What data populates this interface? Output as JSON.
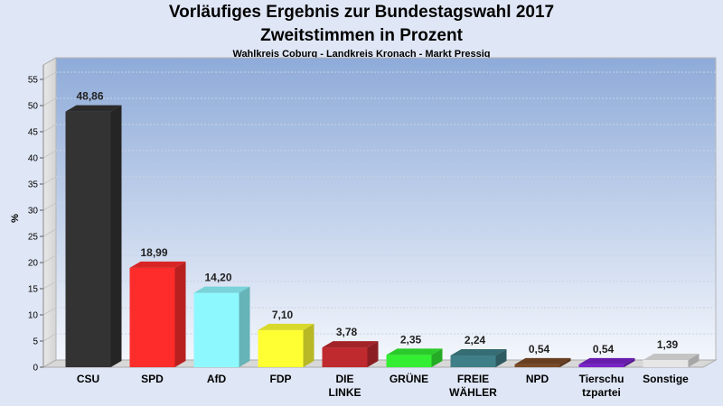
{
  "header": {
    "title_line1": "Vorläufiges Ergebnis zur Bundestagswahl 2017",
    "title_line2": "Zweitstimmen in Prozent",
    "subtitle": "Wahlkreis Coburg - Landkreis Kronach - Markt Pressig"
  },
  "chart_data": {
    "type": "bar",
    "title": "Vorläufiges Ergebnis zur Bundestagswahl 2017 Zweitstimmen in Prozent",
    "subtitle": "Wahlkreis Coburg - Landkreis Kronach - Markt Pressig",
    "ylabel": "%",
    "xlabel": "",
    "ylim": [
      0,
      55
    ],
    "yticks": [
      0,
      5,
      10,
      15,
      20,
      25,
      30,
      35,
      40,
      45,
      50,
      55
    ],
    "grid": true,
    "categories": [
      [
        "CSU"
      ],
      [
        "SPD"
      ],
      [
        "AfD"
      ],
      [
        "FDP"
      ],
      [
        "DIE",
        "LINKE"
      ],
      [
        "GRÜNE"
      ],
      [
        "FREIE",
        "WÄHLER"
      ],
      [
        "NPD"
      ],
      [
        "Tierschu",
        "tzpartei"
      ],
      [
        "Sonstige"
      ]
    ],
    "values": [
      48.86,
      18.99,
      14.2,
      7.1,
      3.78,
      2.35,
      2.24,
      0.54,
      0.54,
      1.39
    ],
    "value_labels": [
      "48,86",
      "18,99",
      "14,20",
      "7,10",
      "3,78",
      "2,35",
      "2,24",
      "0,54",
      "0,54",
      "1,39"
    ],
    "colors": [
      "#333333",
      "#ff2c2c",
      "#8ef8ff",
      "#ffff33",
      "#bf2a2f",
      "#33ee33",
      "#3f7f87",
      "#7a4a26",
      "#7a22cc",
      "#e6e6e6"
    ]
  }
}
